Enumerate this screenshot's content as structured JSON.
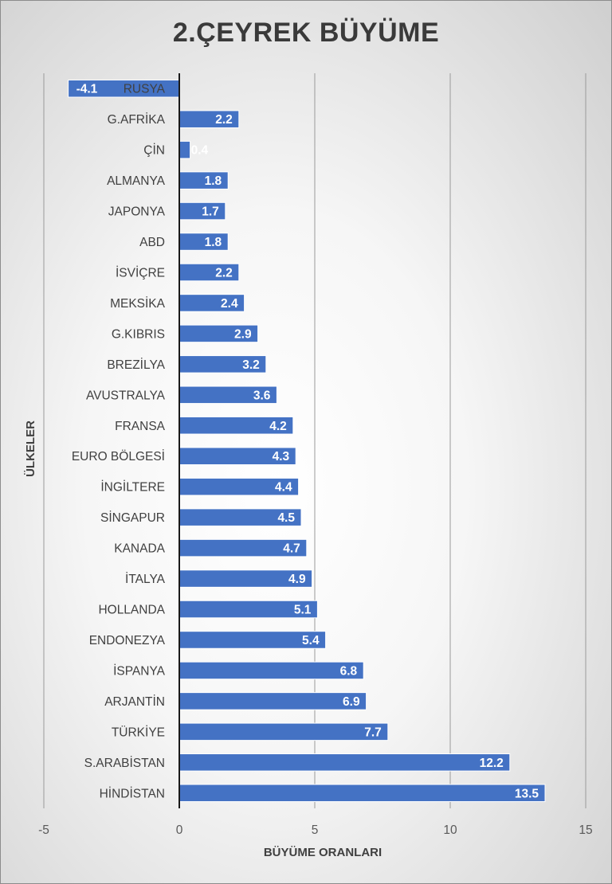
{
  "chart_data": {
    "type": "bar",
    "orientation": "horizontal",
    "title": "2.ÇEYREK BÜYÜME",
    "xlabel": "BÜYÜME ORANLARI",
    "ylabel": "ÜLKELER",
    "categories": [
      "RUSYA",
      "G.AFRİKA",
      "ÇİN",
      "ALMANYA",
      "JAPONYA",
      "ABD",
      "İSVİÇRE",
      "MEKSİKA",
      "G.KIBRIS",
      "BREZİLYA",
      "AVUSTRALYA",
      "FRANSA",
      "EURO BÖLGESİ",
      "İNGİLTERE",
      "SİNGAPUR",
      "KANADA",
      "İTALYA",
      "HOLLANDA",
      "ENDONEZYA",
      "İSPANYA",
      "ARJANTİN",
      "TÜRKİYE",
      "S.ARABİSTAN",
      "HİNDİSTAN"
    ],
    "values": [
      -4.1,
      2.2,
      0.4,
      1.8,
      1.7,
      1.8,
      2.2,
      2.4,
      2.9,
      3.2,
      3.6,
      4.2,
      4.3,
      4.4,
      4.5,
      4.7,
      4.9,
      5.1,
      5.4,
      6.8,
      6.9,
      7.7,
      12.2,
      13.5
    ],
    "xlim": [
      -5,
      15
    ],
    "xticks": [
      -5,
      0,
      5,
      10,
      15
    ],
    "grid": true,
    "legend": "none",
    "bar_color": "#4472C4"
  }
}
